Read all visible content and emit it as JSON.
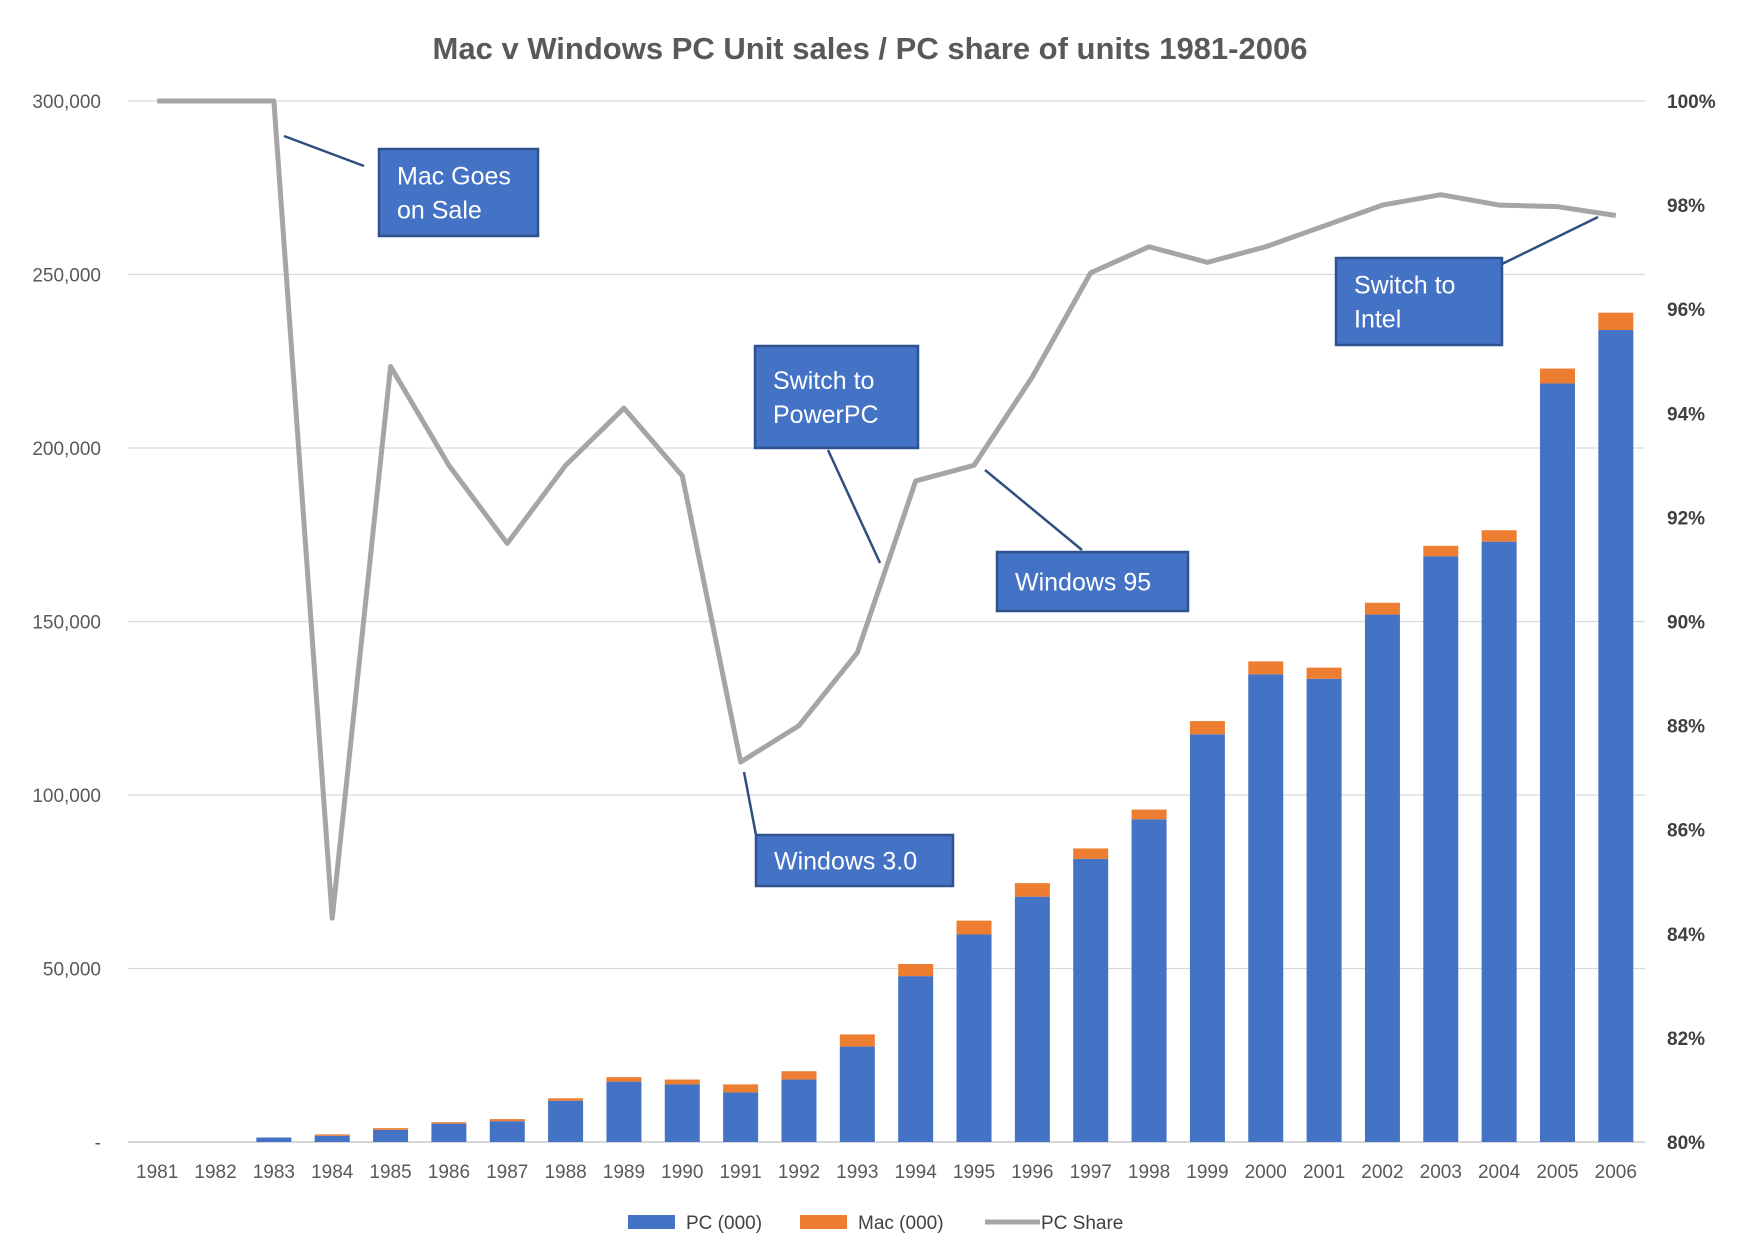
{
  "chart_data": {
    "type": "bar",
    "title": "Mac v Windows PC Unit sales / PC share of units 1981-2006",
    "stacked": true,
    "categories": [
      "1981",
      "1982",
      "1983",
      "1984",
      "1985",
      "1986",
      "1987",
      "1988",
      "1989",
      "1990",
      "1991",
      "1992",
      "1993",
      "1994",
      "1995",
      "1996",
      "1997",
      "1998",
      "1999",
      "2000",
      "2001",
      "2002",
      "2003",
      "2004",
      "2005",
      "2006"
    ],
    "series": [
      {
        "name": "PC (000)",
        "type": "bar",
        "axis": "left",
        "color": "#4472C4",
        "values": [
          0,
          0,
          1300,
          1800,
          3500,
          5300,
          6000,
          11900,
          17400,
          16600,
          14300,
          18000,
          27500,
          47800,
          59800,
          70700,
          81600,
          93000,
          117500,
          134800,
          133500,
          152000,
          168800,
          173000,
          218600,
          234000
        ]
      },
      {
        "name": "Mac (000)",
        "type": "bar",
        "axis": "left",
        "color": "#ED7D31",
        "values": [
          0,
          0,
          0,
          400,
          500,
          400,
          600,
          700,
          1300,
          1400,
          2300,
          2400,
          3500,
          3500,
          4000,
          3900,
          3000,
          2800,
          3800,
          3700,
          3200,
          3400,
          3000,
          3300,
          4300,
          5000
        ]
      },
      {
        "name": "PC Share",
        "type": "line",
        "axis": "right",
        "color": "#A5A5A5",
        "values": [
          100.0,
          100.0,
          100.0,
          84.3,
          94.9,
          93.0,
          91.5,
          93.0,
          94.1,
          92.8,
          87.3,
          88.0,
          89.4,
          92.7,
          93.0,
          94.7,
          96.7,
          97.2,
          96.9,
          97.2,
          97.6,
          98.0,
          98.2,
          98.0,
          97.97,
          97.8
        ]
      }
    ],
    "y_left": {
      "min": 0,
      "max": 300000,
      "ticks": [
        "-",
        "50,000",
        "100,000",
        "150,000",
        "200,000",
        "250,000",
        "300,000"
      ]
    },
    "y_right": {
      "min": 80,
      "max": 100,
      "ticks": [
        "80%",
        "82%",
        "84%",
        "86%",
        "88%",
        "90%",
        "92%",
        "94%",
        "96%",
        "98%",
        "100%"
      ]
    },
    "grid": true,
    "legend_position": "bottom",
    "annotations": [
      {
        "text_lines": [
          "Mac Goes",
          "on Sale"
        ],
        "category": "1983",
        "value": 100.0
      },
      {
        "text_lines": [
          "Switch to",
          "PowerPC"
        ],
        "category": "1993",
        "value": 91.0
      },
      {
        "text_lines": [
          "Windows 95"
        ],
        "category": "1995",
        "value": 93.0
      },
      {
        "text_lines": [
          "Windows 3.0"
        ],
        "category": "1991",
        "value": 87.3
      },
      {
        "text_lines": [
          "Switch to",
          "Intel"
        ],
        "category": "2006",
        "value": 97.8
      }
    ]
  }
}
